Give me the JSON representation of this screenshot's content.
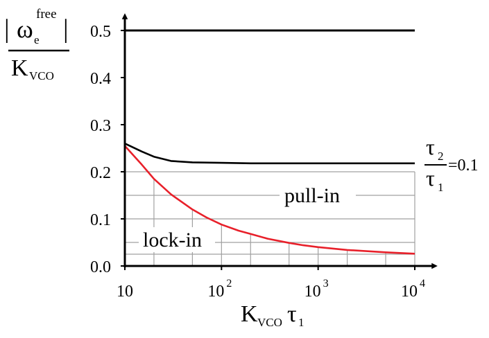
{
  "chart_data": {
    "type": "line",
    "x_scale": "log",
    "xlim": [
      10,
      10000
    ],
    "ylim": [
      0,
      0.5
    ],
    "x_ticks": [
      {
        "value": 10,
        "base": "10",
        "exp": ""
      },
      {
        "value": 100,
        "base": "10",
        "exp": "2"
      },
      {
        "value": 1000,
        "base": "10",
        "exp": "3"
      },
      {
        "value": 10000,
        "base": "10",
        "exp": "4"
      }
    ],
    "y_ticks": [
      "0.0",
      "0.1",
      "0.2",
      "0.3",
      "0.4",
      "0.5"
    ],
    "xlabel": {
      "main": "K",
      "sub1": "VCO",
      "main2": "τ",
      "sub2": "1"
    },
    "ylabel": {
      "omega": "ω",
      "sub": "e",
      "sup": "free",
      "den": "K",
      "den_sub": "VCO"
    },
    "annotation": {
      "num": "τ",
      "num_sub": "2",
      "den": "τ",
      "den_sub": "1",
      "value": "=0.1"
    },
    "region_labels": {
      "pull_in": "pull-in",
      "lock_in": "lock-in"
    },
    "grid": "partial",
    "series": [
      {
        "color": "#000000",
        "x": [
          10,
          15,
          20,
          30,
          50,
          100,
          200,
          500,
          1000,
          2000,
          5000,
          10000
        ],
        "y": [
          0.26,
          0.243,
          0.232,
          0.223,
          0.22,
          0.219,
          0.218,
          0.218,
          0.218,
          0.218,
          0.218,
          0.218
        ]
      },
      {
        "color": "#e8202a",
        "x": [
          10,
          15,
          20,
          30,
          50,
          70,
          100,
          150,
          200,
          300,
          500,
          700,
          1000,
          2000,
          5000,
          10000
        ],
        "y": [
          0.255,
          0.215,
          0.185,
          0.152,
          0.12,
          0.103,
          0.088,
          0.075,
          0.068,
          0.058,
          0.049,
          0.044,
          0.04,
          0.034,
          0.029,
          0.026
        ]
      },
      {
        "color": "#000000",
        "x": [
          10,
          10000
        ],
        "y": [
          0.5,
          0.5
        ]
      }
    ]
  }
}
